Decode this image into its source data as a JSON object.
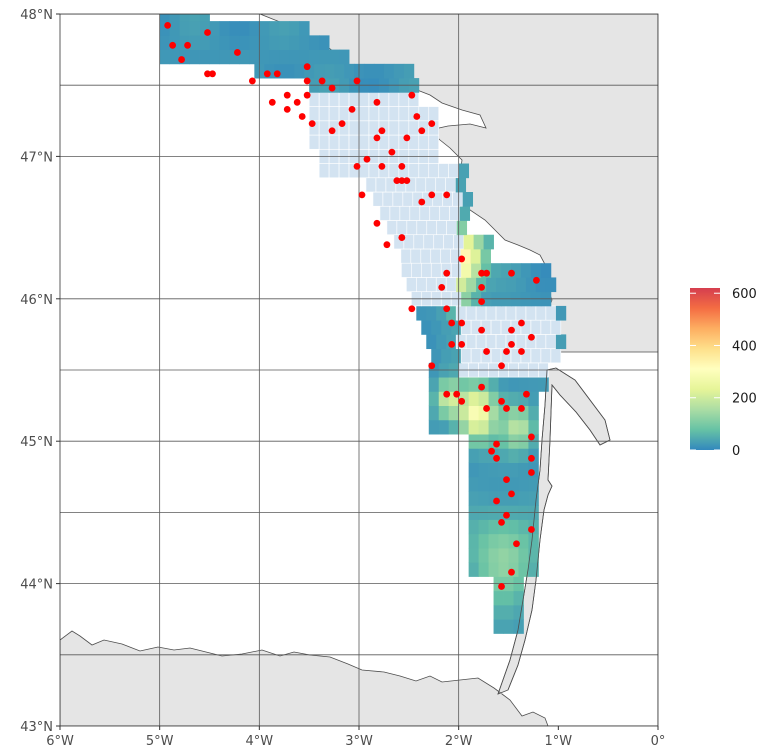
{
  "map": {
    "lon_range": [
      -6,
      0
    ],
    "lat_range": [
      43,
      48
    ],
    "x_ticks": [
      {
        "lon": -6,
        "label": "6°W"
      },
      {
        "lon": -5,
        "label": "5°W"
      },
      {
        "lon": -4,
        "label": "4°W"
      },
      {
        "lon": -3,
        "label": "3°W"
      },
      {
        "lon": -2,
        "label": "2°W"
      },
      {
        "lon": -1,
        "label": "1°W"
      },
      {
        "lon": 0,
        "label": "0°"
      }
    ],
    "y_ticks": [
      {
        "lat": 48,
        "label": "48°N"
      },
      {
        "lat": 47,
        "label": "47°N"
      },
      {
        "lat": 46,
        "label": "46°N"
      },
      {
        "lat": 45,
        "label": "45°N"
      },
      {
        "lat": 44,
        "label": "44°N"
      },
      {
        "lat": 43,
        "label": "43°N"
      }
    ],
    "strata_lines_lat": [
      47.5,
      45.5,
      44.5,
      43.5
    ],
    "strata_lines_lon": [
      -5,
      -4,
      -3,
      -2
    ],
    "colors": {
      "sea": "#ffffff",
      "land": "#e5e5e5",
      "coast": "#4d4d4d",
      "grid_line": "#595959",
      "station": "#ff0000",
      "no_data_cell": "#d3e3f1"
    }
  },
  "legend": {
    "ticks": [
      {
        "value": 600,
        "label": "600"
      },
      {
        "value": 400,
        "label": "400"
      },
      {
        "value": 200,
        "label": "200"
      },
      {
        "value": 0,
        "label": "0"
      }
    ],
    "range": [
      0,
      620
    ],
    "colors": [
      "#3288bd",
      "#66c2a5",
      "#abdda4",
      "#e6f598",
      "#ffffbf",
      "#fee08b",
      "#fdae61",
      "#f46d43",
      "#d53e4f"
    ]
  },
  "stations": [
    [
      -4.92,
      47.92
    ],
    [
      -4.87,
      47.78
    ],
    [
      -4.72,
      47.78
    ],
    [
      -4.78,
      47.68
    ],
    [
      -4.52,
      47.87
    ],
    [
      -4.52,
      47.58
    ],
    [
      -4.47,
      47.58
    ],
    [
      -4.22,
      47.73
    ],
    [
      -4.07,
      47.53
    ],
    [
      -3.92,
      47.58
    ],
    [
      -3.82,
      47.58
    ],
    [
      -3.52,
      47.63
    ],
    [
      -3.52,
      47.53
    ],
    [
      -3.37,
      47.53
    ],
    [
      -3.02,
      47.53
    ],
    [
      -3.87,
      47.38
    ],
    [
      -3.72,
      47.43
    ],
    [
      -3.72,
      47.33
    ],
    [
      -3.62,
      47.38
    ],
    [
      -3.57,
      47.28
    ],
    [
      -3.52,
      47.43
    ],
    [
      -3.47,
      47.23
    ],
    [
      -3.27,
      47.48
    ],
    [
      -3.27,
      47.18
    ],
    [
      -3.17,
      47.23
    ],
    [
      -3.07,
      47.33
    ],
    [
      -2.82,
      47.38
    ],
    [
      -2.47,
      47.43
    ],
    [
      -2.42,
      47.28
    ],
    [
      -2.77,
      47.18
    ],
    [
      -2.82,
      47.13
    ],
    [
      -2.52,
      47.13
    ],
    [
      -2.37,
      47.18
    ],
    [
      -2.27,
      47.23
    ],
    [
      -2.67,
      47.03
    ],
    [
      -2.92,
      46.98
    ],
    [
      -3.02,
      46.93
    ],
    [
      -2.77,
      46.93
    ],
    [
      -2.57,
      46.93
    ],
    [
      -2.62,
      46.83
    ],
    [
      -2.57,
      46.83
    ],
    [
      -2.52,
      46.83
    ],
    [
      -2.97,
      46.73
    ],
    [
      -2.27,
      46.73
    ],
    [
      -2.12,
      46.73
    ],
    [
      -2.37,
      46.68
    ],
    [
      -2.82,
      46.53
    ],
    [
      -2.57,
      46.43
    ],
    [
      -2.72,
      46.38
    ],
    [
      -1.97,
      46.28
    ],
    [
      -2.12,
      46.18
    ],
    [
      -1.77,
      46.18
    ],
    [
      -1.72,
      46.18
    ],
    [
      -1.47,
      46.18
    ],
    [
      -1.22,
      46.13
    ],
    [
      -1.77,
      46.08
    ],
    [
      -2.17,
      46.08
    ],
    [
      -1.77,
      45.98
    ],
    [
      -2.47,
      45.93
    ],
    [
      -2.12,
      45.93
    ],
    [
      -2.07,
      45.83
    ],
    [
      -1.97,
      45.83
    ],
    [
      -1.37,
      45.83
    ],
    [
      -1.47,
      45.78
    ],
    [
      -1.77,
      45.78
    ],
    [
      -1.27,
      45.73
    ],
    [
      -2.07,
      45.68
    ],
    [
      -1.97,
      45.68
    ],
    [
      -1.47,
      45.68
    ],
    [
      -1.72,
      45.63
    ],
    [
      -1.52,
      45.63
    ],
    [
      -1.37,
      45.63
    ],
    [
      -1.57,
      45.53
    ],
    [
      -2.27,
      45.53
    ],
    [
      -1.77,
      45.38
    ],
    [
      -2.12,
      45.33
    ],
    [
      -2.02,
      45.33
    ],
    [
      -1.97,
      45.28
    ],
    [
      -1.57,
      45.28
    ],
    [
      -1.32,
      45.33
    ],
    [
      -1.52,
      45.23
    ],
    [
      -1.72,
      45.23
    ],
    [
      -1.37,
      45.23
    ],
    [
      -1.27,
      45.03
    ],
    [
      -1.62,
      44.98
    ],
    [
      -1.67,
      44.93
    ],
    [
      -1.62,
      44.88
    ],
    [
      -1.27,
      44.88
    ],
    [
      -1.27,
      44.78
    ],
    [
      -1.52,
      44.73
    ],
    [
      -1.47,
      44.63
    ],
    [
      -1.62,
      44.58
    ],
    [
      -1.52,
      44.48
    ],
    [
      -1.57,
      44.43
    ],
    [
      -1.27,
      44.38
    ],
    [
      -1.42,
      44.28
    ],
    [
      -1.47,
      44.08
    ],
    [
      -1.57,
      43.98
    ]
  ]
}
